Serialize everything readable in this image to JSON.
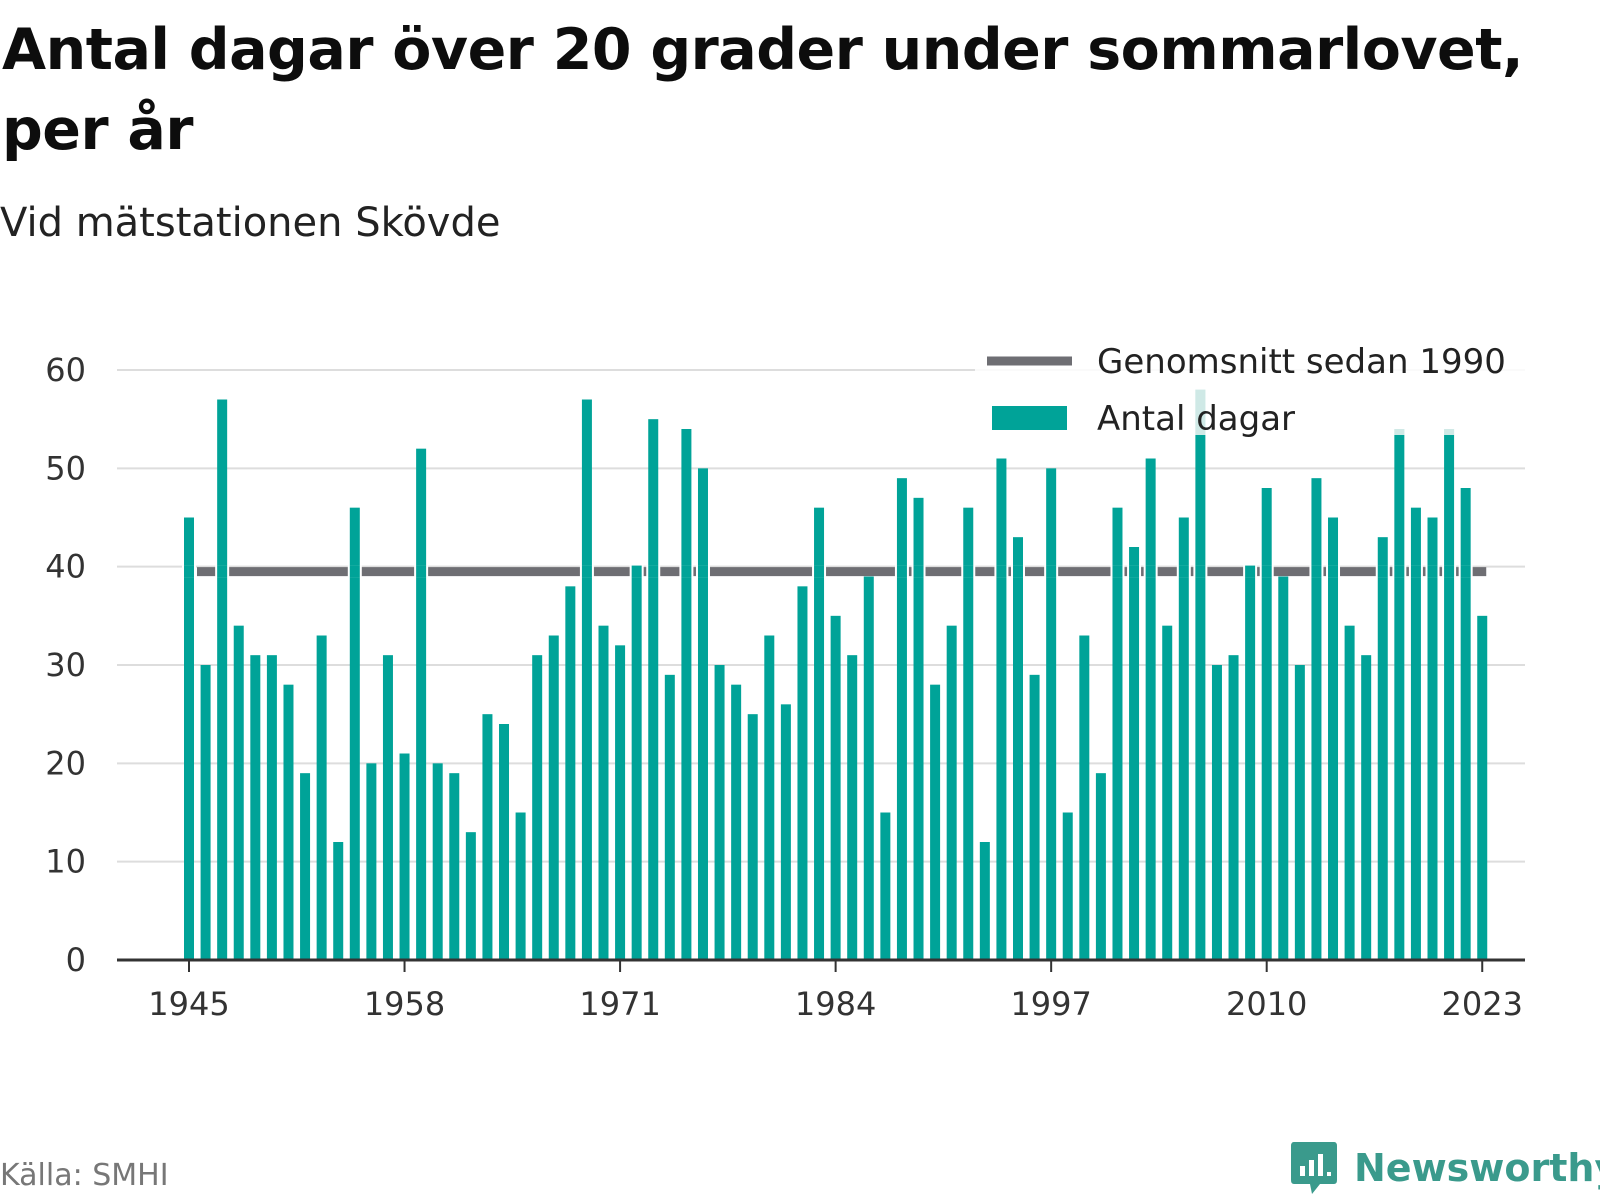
{
  "header": {
    "title": "Antal dagar över 20 grader under sommarlovet, per år",
    "subtitle": "Vid mätstationen Skövde"
  },
  "footer": {
    "source": "Källa: SMHI",
    "brand": "Newsworthy"
  },
  "colors": {
    "bar": "#00a398",
    "bar_highlight": "#cfe9e6",
    "average_line": "#6e6e73",
    "grid": "#dddddd",
    "axis": "#333333",
    "brand": "#3a9a8c"
  },
  "chart_data": {
    "type": "bar",
    "years": [
      1945,
      1946,
      1947,
      1948,
      1949,
      1950,
      1951,
      1952,
      1953,
      1954,
      1955,
      1956,
      1957,
      1958,
      1959,
      1960,
      1961,
      1962,
      1963,
      1964,
      1965,
      1966,
      1967,
      1968,
      1969,
      1970,
      1971,
      1972,
      1973,
      1974,
      1975,
      1976,
      1977,
      1978,
      1979,
      1980,
      1981,
      1982,
      1983,
      1984,
      1985,
      1986,
      1987,
      1988,
      1989,
      1990,
      1991,
      1992,
      1993,
      1994,
      1995,
      1996,
      1997,
      1998,
      1999,
      2000,
      2001,
      2002,
      2003,
      2004,
      2005,
      2006,
      2007,
      2008,
      2009,
      2010,
      2011,
      2012,
      2013,
      2014,
      2015,
      2016,
      2017,
      2018,
      2019,
      2020,
      2021,
      2022,
      2023
    ],
    "series": [
      {
        "name": "Antal dagar",
        "values": [
          45,
          30,
          57,
          34,
          31,
          31,
          28,
          19,
          33,
          12,
          46,
          20,
          31,
          21,
          52,
          20,
          19,
          13,
          25,
          24,
          15,
          31,
          33,
          38,
          57,
          34,
          32,
          40,
          55,
          29,
          54,
          50,
          30,
          28,
          25,
          33,
          26,
          38,
          46,
          35,
          31,
          39,
          15,
          49,
          47,
          28,
          34,
          46,
          12,
          51,
          43,
          29,
          50,
          15,
          33,
          19,
          46,
          42,
          51,
          34,
          45,
          58,
          30,
          31,
          40,
          48,
          39,
          30,
          49,
          45,
          34,
          31,
          43,
          54,
          46,
          45,
          54,
          48,
          35
        ]
      },
      {
        "name": "Genomsnitt sedan 1990",
        "value": 39.5
      }
    ],
    "x_tick_labels": [
      "1945",
      "1958",
      "1971",
      "1984",
      "1997",
      "2010",
      "2023"
    ],
    "y_tick_labels": [
      "0",
      "10",
      "20",
      "30",
      "40",
      "50",
      "60"
    ],
    "ylim": [
      0,
      60
    ],
    "legend": [
      "Genomsnitt sedan 1990",
      "Antal dagar"
    ],
    "legend_position": "top-right",
    "grid": true
  }
}
